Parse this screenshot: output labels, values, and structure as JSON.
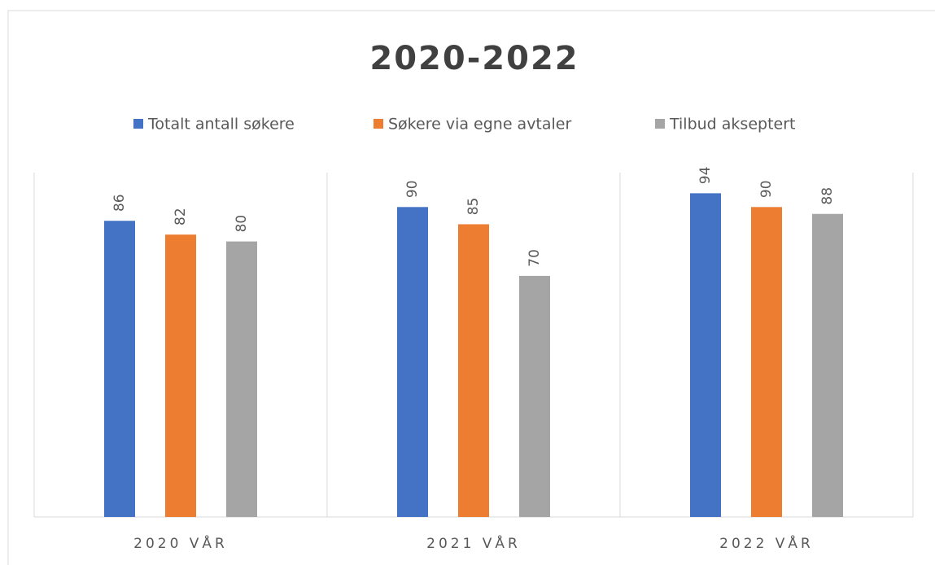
{
  "chart_data": {
    "type": "bar",
    "title": "2020-2022",
    "categories": [
      "2020 VÅR",
      "2021 VÅR",
      "2022 VÅR"
    ],
    "series": [
      {
        "name": "Totalt antall søkere",
        "color": "#4472c4",
        "values": [
          86,
          90,
          94
        ]
      },
      {
        "name": "Søkere via egne avtaler",
        "color": "#ed7d31",
        "values": [
          82,
          85,
          90
        ]
      },
      {
        "name": "Tilbud akseptert",
        "color": "#a5a5a5",
        "values": [
          80,
          70,
          88
        ]
      }
    ],
    "ylim": [
      0,
      100
    ],
    "legend": "top"
  }
}
